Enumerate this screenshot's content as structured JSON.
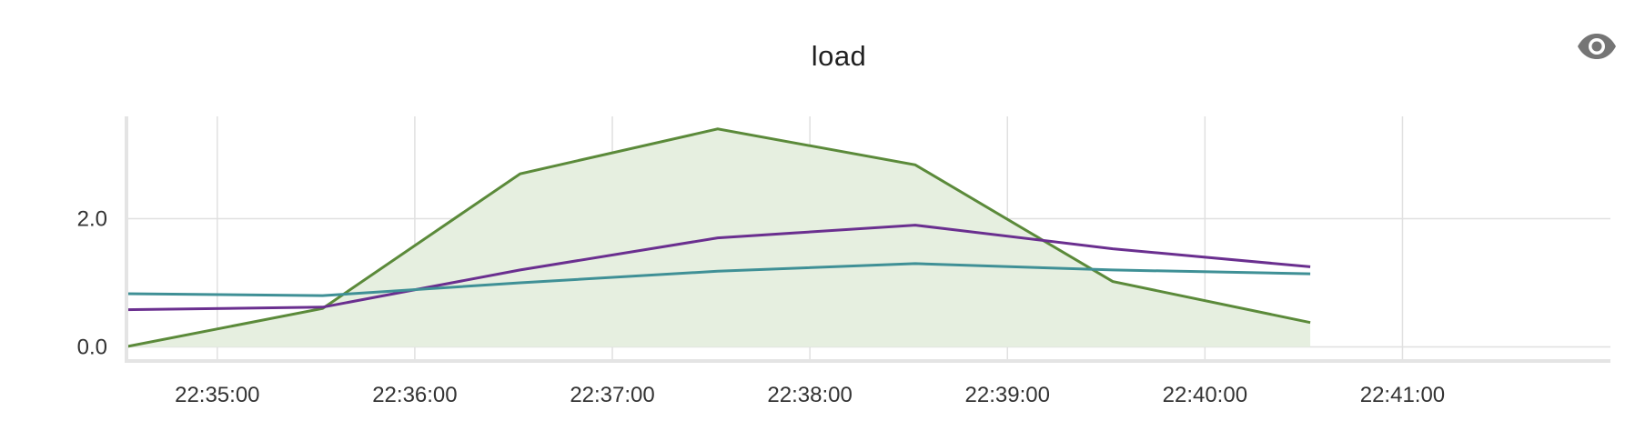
{
  "chart_data": {
    "type": "area",
    "title": "load",
    "xlabel": "",
    "ylabel": "",
    "x": [
      "22:34:32",
      "22:35:32",
      "22:36:32",
      "22:37:32",
      "22:38:32",
      "22:39:32",
      "22:40:32"
    ],
    "x_range": [
      "22:34:32",
      "22:41:30"
    ],
    "ylim": [
      -0.2,
      3.6
    ],
    "x_ticks": [
      "22:35:00",
      "22:36:00",
      "22:37:00",
      "22:38:00",
      "22:39:00",
      "22:40:00",
      "22:41:00"
    ],
    "y_ticks": [
      0.0,
      2.0
    ],
    "y_tick_labels": [
      "0.0",
      "2.0"
    ],
    "grid": true,
    "legend": "none",
    "series": [
      {
        "color": "#5b8a3a",
        "fill": "#e6efe0",
        "filled": true,
        "values": [
          0.0,
          0.6,
          2.7,
          3.4,
          2.84,
          1.02,
          0.38
        ]
      },
      {
        "color": "#6a2f8f",
        "filled": false,
        "values": [
          0.58,
          0.62,
          1.2,
          1.7,
          1.9,
          1.53,
          1.25
        ]
      },
      {
        "color": "#3f9096",
        "filled": false,
        "values": [
          0.83,
          0.8,
          1.0,
          1.18,
          1.3,
          1.2,
          1.14
        ]
      }
    ]
  },
  "icons": {
    "visibility": "eye-icon"
  },
  "colors": {
    "grid": "#e0e0e0",
    "axis": "#e4e4e4",
    "eye": "#757575"
  }
}
